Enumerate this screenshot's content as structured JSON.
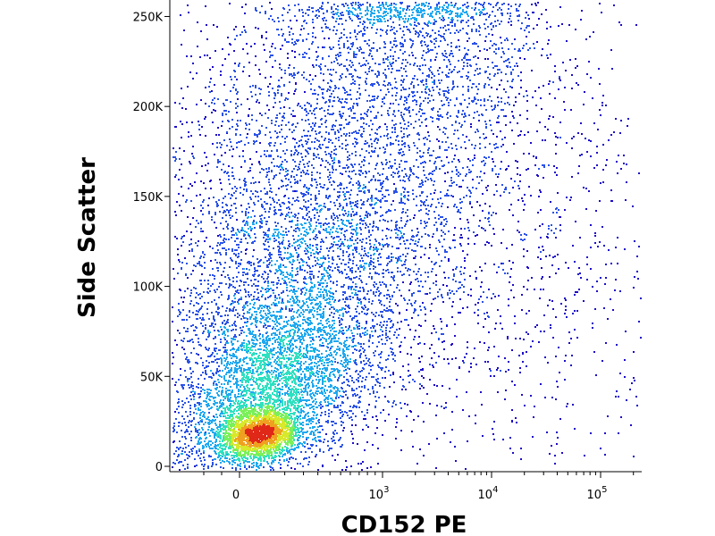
{
  "chart_data": {
    "type": "scatter",
    "subtype": "flow-cytometry-density-dot-plot",
    "title": "",
    "xlabel": "CD152 PE",
    "ylabel": "Side Scatter",
    "x_scale": "biexponential",
    "x_range": [
      -300,
      220000
    ],
    "y_range": [
      0,
      262144
    ],
    "grid": false,
    "legend": "none",
    "density_colors": [
      "#1c0cc8",
      "#2a52e8",
      "#20a8f0",
      "#2fe0c0",
      "#7af05a",
      "#d8e82a",
      "#f0a020",
      "#e02818"
    ],
    "x_ticks": [
      {
        "value": 0,
        "label": "0"
      },
      {
        "value": 1000,
        "label": "10",
        "exponent": "3"
      },
      {
        "value": 10000,
        "label": "10",
        "exponent": "4"
      },
      {
        "value": 100000,
        "label": "10",
        "exponent": "5"
      }
    ],
    "y_ticks": [
      {
        "value": 0,
        "label": "0"
      },
      {
        "value": 50000,
        "label": "50K"
      },
      {
        "value": 100000,
        "label": "100K"
      },
      {
        "value": 150000,
        "label": "150K"
      },
      {
        "value": 200000,
        "label": "200K"
      },
      {
        "value": 250000,
        "label": "250K"
      }
    ],
    "populations": [
      {
        "x_center": 40,
        "y_center": 18000,
        "note": "dense core"
      },
      {
        "x_center": 80,
        "y_center": 30000
      },
      {
        "x_center": 300,
        "y_center": 60000
      },
      {
        "x_center": 500,
        "y_center": 130000
      },
      {
        "x_center": 2500,
        "y_center": 170000
      }
    ]
  }
}
